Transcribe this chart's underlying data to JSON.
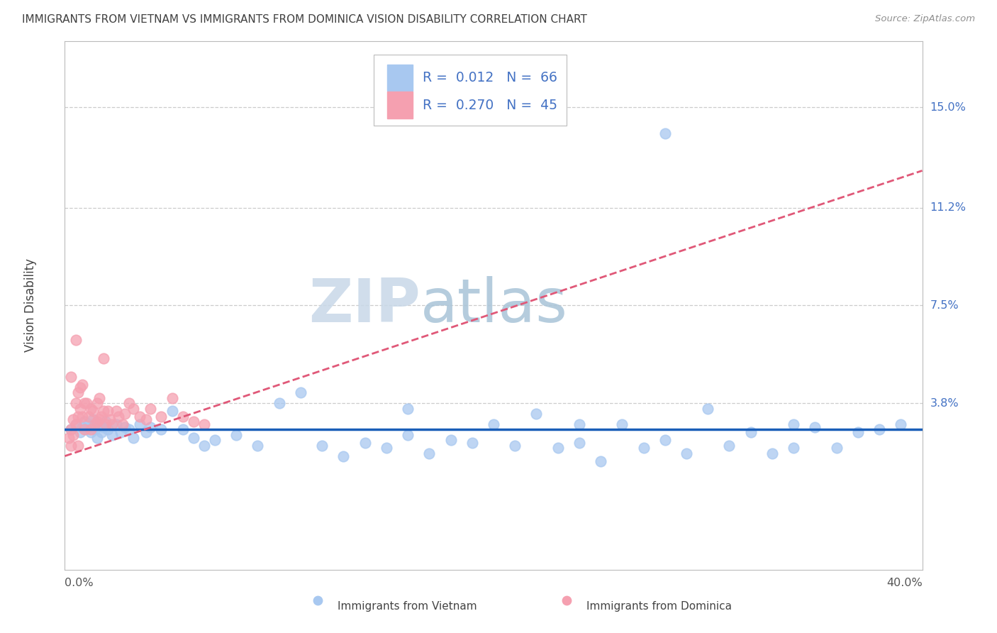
{
  "title": "IMMIGRANTS FROM VIETNAM VS IMMIGRANTS FROM DOMINICA VISION DISABILITY CORRELATION CHART",
  "source": "Source: ZipAtlas.com",
  "ylabel": "Vision Disability",
  "xlim": [
    0.0,
    0.4
  ],
  "ylim": [
    -0.025,
    0.175
  ],
  "ytick_values": [
    0.038,
    0.075,
    0.112,
    0.15
  ],
  "ytick_labels": [
    "3.8%",
    "7.5%",
    "11.2%",
    "15.0%"
  ],
  "xtick_left": "0.0%",
  "xtick_right": "40.0%",
  "legend_r_vietnam": "0.012",
  "legend_n_vietnam": "66",
  "legend_r_dominica": "0.270",
  "legend_n_dominica": "45",
  "vietnam_color": "#a8c8f0",
  "dominica_color": "#f5a0b0",
  "trendline_vietnam_color": "#1a5eb8",
  "trendline_dominica_color": "#e05878",
  "title_color": "#404040",
  "source_color": "#909090",
  "axis_label_color": "#4472c4",
  "grid_color": "#cccccc",
  "background_color": "#ffffff",
  "vietnam_trendline_slope": 0.0,
  "vietnam_trendline_intercept": 0.028,
  "dominica_trendline_slope": 0.27,
  "dominica_trendline_intercept": 0.018,
  "vietnam_x": [
    0.003,
    0.005,
    0.007,
    0.008,
    0.009,
    0.01,
    0.011,
    0.012,
    0.013,
    0.014,
    0.015,
    0.016,
    0.017,
    0.018,
    0.019,
    0.02,
    0.022,
    0.024,
    0.026,
    0.028,
    0.03,
    0.032,
    0.035,
    0.038,
    0.04,
    0.045,
    0.05,
    0.055,
    0.06,
    0.065,
    0.07,
    0.08,
    0.09,
    0.1,
    0.11,
    0.12,
    0.13,
    0.14,
    0.15,
    0.16,
    0.17,
    0.18,
    0.19,
    0.2,
    0.21,
    0.22,
    0.23,
    0.24,
    0.25,
    0.26,
    0.27,
    0.28,
    0.29,
    0.3,
    0.31,
    0.32,
    0.33,
    0.34,
    0.35,
    0.36,
    0.37,
    0.38,
    0.39,
    0.16,
    0.24,
    0.34
  ],
  "vietnam_y": [
    0.028,
    0.03,
    0.027,
    0.029,
    0.031,
    0.028,
    0.03,
    0.027,
    0.032,
    0.028,
    0.025,
    0.03,
    0.027,
    0.029,
    0.031,
    0.028,
    0.026,
    0.03,
    0.027,
    0.029,
    0.028,
    0.025,
    0.03,
    0.027,
    0.029,
    0.028,
    0.035,
    0.028,
    0.025,
    0.022,
    0.024,
    0.026,
    0.022,
    0.038,
    0.042,
    0.022,
    0.018,
    0.023,
    0.021,
    0.026,
    0.019,
    0.024,
    0.023,
    0.03,
    0.022,
    0.034,
    0.021,
    0.023,
    0.016,
    0.03,
    0.021,
    0.024,
    0.019,
    0.036,
    0.022,
    0.027,
    0.019,
    0.021,
    0.029,
    0.021,
    0.027,
    0.028,
    0.03,
    0.036,
    0.03,
    0.03
  ],
  "vietnam_outlier_x": [
    0.28
  ],
  "vietnam_outlier_y": [
    0.14
  ],
  "dominica_x": [
    0.002,
    0.003,
    0.003,
    0.004,
    0.004,
    0.005,
    0.005,
    0.006,
    0.006,
    0.007,
    0.007,
    0.008,
    0.008,
    0.009,
    0.009,
    0.01,
    0.011,
    0.012,
    0.012,
    0.013,
    0.014,
    0.015,
    0.015,
    0.016,
    0.016,
    0.017,
    0.018,
    0.019,
    0.02,
    0.021,
    0.022,
    0.024,
    0.025,
    0.027,
    0.028,
    0.03,
    0.032,
    0.035,
    0.038,
    0.04,
    0.045,
    0.05,
    0.055,
    0.06,
    0.065
  ],
  "dominica_y": [
    0.025,
    0.028,
    0.022,
    0.032,
    0.026,
    0.038,
    0.03,
    0.042,
    0.033,
    0.044,
    0.036,
    0.045,
    0.033,
    0.038,
    0.028,
    0.038,
    0.033,
    0.036,
    0.028,
    0.035,
    0.03,
    0.038,
    0.031,
    0.04,
    0.032,
    0.033,
    0.035,
    0.03,
    0.035,
    0.032,
    0.03,
    0.035,
    0.033,
    0.03,
    0.034,
    0.038,
    0.036,
    0.033,
    0.032,
    0.036,
    0.033,
    0.04,
    0.033,
    0.031,
    0.03
  ],
  "dominica_outlier1_x": [
    0.005
  ],
  "dominica_outlier1_y": [
    0.062
  ],
  "dominica_outlier2_x": [
    0.018
  ],
  "dominica_outlier2_y": [
    0.055
  ],
  "dominica_outlier3_x": [
    0.003
  ],
  "dominica_outlier3_y": [
    0.048
  ],
  "dominica_outlier4_x": [
    0.006
  ],
  "dominica_outlier4_y": [
    0.022
  ]
}
